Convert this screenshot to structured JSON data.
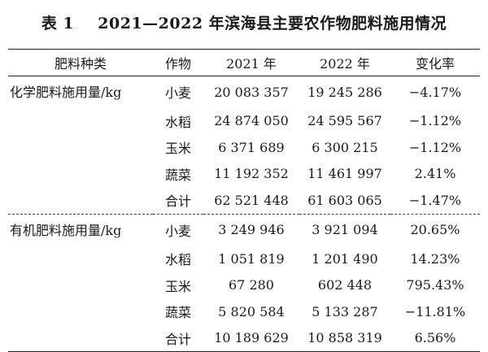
{
  "title": {
    "label": "表 1",
    "text": "2021—2022 年滨海县主要农作物肥料施用情况"
  },
  "headers": [
    "肥料种类",
    "作物",
    "2021 年",
    "2022 年",
    "变化率"
  ],
  "groups": [
    {
      "category": "化学肥料施用量/kg",
      "rows": [
        {
          "crop": "小麦",
          "y2021": "20 083 357",
          "y2022": "19 245 286",
          "rate": "−4.17%"
        },
        {
          "crop": "水稻",
          "y2021": "24 874 050",
          "y2022": "24 595 567",
          "rate": "−1.12%"
        },
        {
          "crop": "玉米",
          "y2021": "6 371 689",
          "y2022": "6 300 215",
          "rate": "−1.12%"
        },
        {
          "crop": "蔬菜",
          "y2021": "11 192 352",
          "y2022": "11 461 997",
          "rate": "2.41%"
        },
        {
          "crop": "合计",
          "y2021": "62 521 448",
          "y2022": "61 603 065",
          "rate": "−1.47%"
        }
      ]
    },
    {
      "category": "有机肥料施用量/kg",
      "rows": [
        {
          "crop": "小麦",
          "y2021": "3 249 946",
          "y2022": "3 921 094",
          "rate": "20.65%"
        },
        {
          "crop": "水稻",
          "y2021": "1 051 819",
          "y2022": "1 201 490",
          "rate": "14.23%"
        },
        {
          "crop": "玉米",
          "y2021": "67 280",
          "y2022": "602 448",
          "rate": "795.43%"
        },
        {
          "crop": "蔬菜",
          "y2021": "5 820 584",
          "y2022": "5 133 287",
          "rate": "−11.81%"
        },
        {
          "crop": "合计",
          "y2021": "10 189 629",
          "y2022": "10 858 319",
          "rate": "6.56%"
        }
      ]
    }
  ]
}
